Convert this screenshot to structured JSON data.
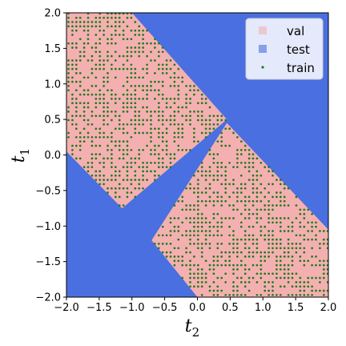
{
  "chart_data": {
    "type": "scatter",
    "title": "",
    "xlabel": "t",
    "xlabel_sub": "2",
    "ylabel": "t",
    "ylabel_sub": "1",
    "xlim": [
      -2.0,
      2.0
    ],
    "ylim": [
      -2.0,
      2.0
    ],
    "xticks": [
      "−2.0",
      "−1.5",
      "−1.0",
      "−0.5",
      "0.0",
      "0.5",
      "1.0",
      "1.5",
      "2.0"
    ],
    "yticks": [
      "−2.0",
      "−1.5",
      "−1.0",
      "−0.5",
      "0.0",
      "0.5",
      "1.0",
      "1.5",
      "2.0"
    ],
    "grid": false,
    "legend_position": "top-right",
    "series": [
      {
        "name": "val",
        "color": "#f4b0b0",
        "marker": "square",
        "region": "two parallelogram bands"
      },
      {
        "name": "test",
        "color": "#4a6fe0",
        "marker": "square",
        "region": "background grid"
      },
      {
        "name": "train",
        "color": "#1f7a1f",
        "marker": "dot",
        "region": "scattered points inside bands"
      }
    ],
    "regions": {
      "upper_left_band": [
        [
          -2.0,
          2.0
        ],
        [
          -1.0,
          2.0
        ],
        [
          0.45,
          0.5
        ],
        [
          -1.15,
          -0.75
        ],
        [
          -2.0,
          0.05
        ]
      ],
      "lower_right_band": [
        [
          0.45,
          0.45
        ],
        [
          2.0,
          -1.05
        ],
        [
          2.0,
          -2.0
        ],
        [
          0.0,
          -2.0
        ],
        [
          -0.7,
          -1.2
        ]
      ]
    }
  }
}
